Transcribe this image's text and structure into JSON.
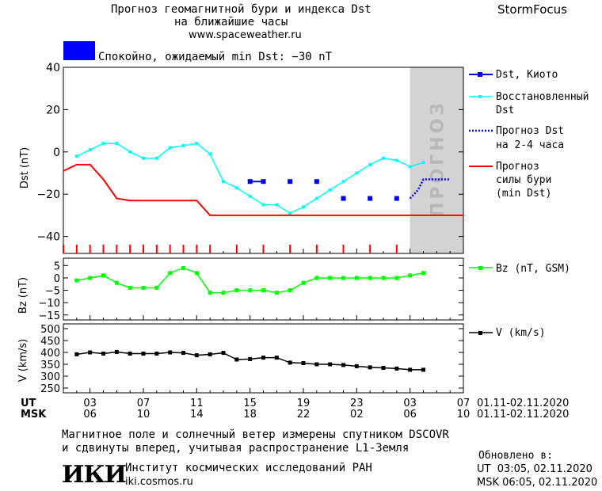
{
  "header": {
    "title_line1": "Прогноз геомагнитной бури и индекса Dst",
    "title_line2": "на ближайшие часы",
    "url": "www.spaceweather.ru",
    "brand": "StormFocus"
  },
  "status": {
    "text": "Спокойно, ожидаемый min Dst: −30 nT",
    "color": "#0000ff"
  },
  "forecast_label": "ПРОГНОЗ",
  "legend": {
    "dst_kyoto": "Dst, Киото",
    "restored_line1": "Восстановленный",
    "restored_line2": "Dst",
    "forecast_dst_line1": "Прогноз Dst",
    "forecast_dst_line2": "на 2-4 часа",
    "storm_line1": "Прогноз",
    "storm_line2": "силы бури",
    "storm_line3": "(min Dst)",
    "bz": "Bz (nT, GSM)",
    "v": "V (km/s)"
  },
  "axes": {
    "dst_label": "Dst (nT)",
    "bz_label": "Bz (nT)",
    "v_label": "V (km/s)",
    "ut_label": "UT",
    "msk_label": "MSK",
    "ut_ticks": [
      "03",
      "07",
      "11",
      "15",
      "19",
      "23",
      "03",
      "07"
    ],
    "msk_ticks": [
      "06",
      "10",
      "14",
      "18",
      "22",
      "02",
      "06",
      "10"
    ],
    "date_range": "01.11-02.11.2020"
  },
  "footer": {
    "note_line1": "Магнитное поле и солнечный ветер измерены спутником DSCOVR",
    "note_line2": "и сдвинуты вперед, учитывая распространение L1-Земля",
    "institute": "Институт космических исследований РАН",
    "institute_url": "iki.cosmos.ru",
    "logo": "ИКИ",
    "updated_label": "Обновлено в:",
    "updated_ut": "UT  03:05, 02.11.2020",
    "updated_msk": "MSK 06:05, 02.11.2020"
  },
  "colors": {
    "dst_kyoto": "#0000ff",
    "restored": "#00ffff",
    "forecast_dst": "#0000ff",
    "storm": "#ff0000",
    "bz": "#00ff00",
    "v": "#000000",
    "forecast_zone": "#d3d3d3"
  },
  "chart_data": [
    {
      "type": "line",
      "panel": "Dst",
      "x_unit": "hours since 01.11 00 UT",
      "xlim": [
        1,
        31
      ],
      "ylim": [
        -48,
        40
      ],
      "yticks": [
        40,
        20,
        0,
        -20,
        -40
      ],
      "forecast_zone_start": 27,
      "series": [
        {
          "name": "Dst, Киото",
          "style": "markers",
          "x": [
            15,
            16,
            18,
            20,
            22,
            24,
            26
          ],
          "y": [
            -14,
            -14,
            -14,
            -14,
            -22,
            -22,
            -22
          ]
        },
        {
          "name": "Восстановленный Dst",
          "style": "line-markers",
          "x": [
            2,
            3,
            4,
            5,
            6,
            7,
            8,
            9,
            10,
            11,
            12,
            13,
            14,
            15,
            16,
            17,
            18,
            19,
            20,
            21,
            22,
            23,
            24,
            25,
            26,
            27,
            28
          ],
          "y": [
            -2,
            1,
            4,
            4,
            0,
            -3,
            -3,
            2,
            3,
            4,
            -1,
            -14,
            -17,
            -21,
            -25,
            -25,
            -29,
            -26,
            -22,
            -18,
            -14,
            -10,
            -6,
            -3,
            -4,
            -7,
            -5
          ]
        },
        {
          "name": "Прогноз Dst на 2-4 часа",
          "style": "dotted",
          "x": [
            27,
            27.6,
            28,
            29,
            30
          ],
          "y": [
            -22,
            -18,
            -13,
            -13,
            -13
          ]
        },
        {
          "name": "Прогноз силы бури (min Dst)",
          "style": "line",
          "x": [
            1,
            2,
            3,
            4,
            5,
            6,
            7,
            8,
            9,
            10,
            11,
            12,
            31
          ],
          "y": [
            -9,
            -6,
            -6,
            -13,
            -22,
            -23,
            -23,
            -23,
            -23,
            -23,
            -23,
            -30,
            -30
          ]
        }
      ],
      "ticks_red_x": [
        1,
        2,
        3,
        4,
        5,
        6,
        7,
        8,
        9,
        10,
        11,
        12,
        14,
        16,
        18,
        20,
        22,
        24,
        26
      ]
    },
    {
      "type": "line",
      "panel": "Bz",
      "xlim": [
        1,
        31
      ],
      "ylim": [
        -17,
        8
      ],
      "yticks": [
        5,
        0,
        -5,
        -10,
        -15
      ],
      "series": [
        {
          "name": "Bz (nT, GSM)",
          "x": [
            2,
            3,
            4,
            5,
            6,
            7,
            8,
            9,
            10,
            11,
            12,
            13,
            14,
            15,
            16,
            17,
            18,
            19,
            20,
            21,
            22,
            23,
            24,
            25,
            26,
            27,
            28
          ],
          "y": [
            -1,
            0,
            1,
            -2,
            -4,
            -4,
            -4,
            2,
            4,
            2,
            -6,
            -6,
            -5,
            -5,
            -5,
            -6,
            -5,
            -2,
            0,
            0,
            0,
            0,
            0,
            0,
            0,
            1,
            2
          ]
        }
      ]
    },
    {
      "type": "line",
      "panel": "V",
      "xlim": [
        1,
        31
      ],
      "ylim": [
        230,
        520
      ],
      "yticks": [
        500,
        450,
        400,
        350,
        300,
        250
      ],
      "series": [
        {
          "name": "V (km/s)",
          "x": [
            2,
            3,
            4,
            5,
            6,
            7,
            8,
            9,
            10,
            11,
            12,
            13,
            14,
            15,
            16,
            17,
            18,
            19,
            20,
            21,
            22,
            23,
            24,
            25,
            26,
            27,
            28
          ],
          "y": [
            392,
            400,
            395,
            402,
            395,
            395,
            395,
            400,
            398,
            388,
            392,
            398,
            370,
            372,
            378,
            378,
            357,
            355,
            350,
            350,
            347,
            342,
            337,
            335,
            332,
            327,
            327
          ]
        }
      ]
    }
  ]
}
